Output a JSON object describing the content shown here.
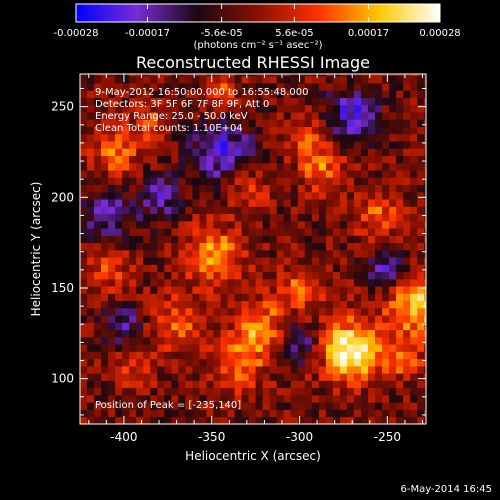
{
  "colorbar": {
    "ticks": [
      {
        "label": "-0.00028",
        "value": -0.00028
      },
      {
        "label": "-0.00017",
        "value": -0.00017
      },
      {
        "label": "-5.6e-05",
        "value": -5.6e-05
      },
      {
        "label": "5.6e-05",
        "value": 5.6e-05
      },
      {
        "label": "0.00017",
        "value": 0.00017
      },
      {
        "label": "0.00028",
        "value": 0.00028
      }
    ],
    "range": [
      -0.00028,
      0.00028
    ],
    "unit_label": "(photons cm⁻² s⁻¹ asec⁻²)",
    "stops": [
      "#0000ff",
      "#7a2bd8",
      "#1a0812",
      "#8a1000",
      "#ff3200",
      "#ffc800",
      "#ffffff"
    ]
  },
  "chart_data": {
    "type": "heatmap",
    "title": "Reconstructed RHESSI Image",
    "xlabel": "Heliocentric X (arcsec)",
    "ylabel": "Heliocentric Y (arcsec)",
    "xlim": [
      -425,
      -228
    ],
    "ylim": [
      75,
      268
    ],
    "x_ticks": [
      {
        "label": "-400",
        "value": -400
      },
      {
        "label": "-350",
        "value": -350
      },
      {
        "label": "-300",
        "value": -300
      },
      {
        "label": "-250",
        "value": -250
      }
    ],
    "y_ticks": [
      {
        "label": "100",
        "value": 100
      },
      {
        "label": "150",
        "value": 150
      },
      {
        "label": "200",
        "value": 200
      },
      {
        "label": "250",
        "value": 250
      }
    ],
    "annotations": [
      "9-May-2012 16:50:00.000 to 16:55:48.000",
      "Detectors: 3F 5F 6F 7F 8F 9F, Att 0",
      "Energy Range: 25.0 - 50.0 keV",
      "Clean    Total counts: 1.10E+04"
    ],
    "peak_label": "Position of Peak = [-235,140]",
    "peak_position": [
      -235,
      140
    ],
    "grid": "off",
    "hotspots": [
      {
        "x": -233,
        "y": 140,
        "sigma": 12,
        "amp": 1.0
      },
      {
        "x": -275,
        "y": 118,
        "sigma": 13,
        "amp": 0.85
      },
      {
        "x": -265,
        "y": 112,
        "sigma": 9,
        "amp": 0.7
      },
      {
        "x": -322,
        "y": 128,
        "sigma": 11,
        "amp": 0.8
      },
      {
        "x": -335,
        "y": 108,
        "sigma": 10,
        "amp": 0.65
      },
      {
        "x": -348,
        "y": 168,
        "sigma": 12,
        "amp": 0.75
      },
      {
        "x": -300,
        "y": 150,
        "sigma": 9,
        "amp": 0.55
      },
      {
        "x": -370,
        "y": 130,
        "sigma": 11,
        "amp": 0.6
      },
      {
        "x": -405,
        "y": 225,
        "sigma": 9,
        "amp": 0.7
      },
      {
        "x": -385,
        "y": 240,
        "sigma": 7,
        "amp": 0.55
      },
      {
        "x": -287,
        "y": 215,
        "sigma": 9,
        "amp": 0.6
      },
      {
        "x": -296,
        "y": 232,
        "sigma": 8,
        "amp": 0.55
      },
      {
        "x": -255,
        "y": 190,
        "sigma": 9,
        "amp": 0.6
      },
      {
        "x": -345,
        "y": 258,
        "sigma": 7,
        "amp": 0.5
      },
      {
        "x": -410,
        "y": 160,
        "sigma": 9,
        "amp": 0.5
      },
      {
        "x": -330,
        "y": 205,
        "sigma": 9,
        "amp": 0.45
      },
      {
        "x": -240,
        "y": 110,
        "sigma": 7,
        "amp": 0.55
      },
      {
        "x": -395,
        "y": 105,
        "sigma": 8,
        "amp": 0.4
      }
    ],
    "coldspots": [
      {
        "x": -300,
        "y": 120,
        "sigma": 9,
        "amp": 0.7
      },
      {
        "x": -345,
        "y": 225,
        "sigma": 12,
        "amp": 0.8
      },
      {
        "x": -270,
        "y": 245,
        "sigma": 10,
        "amp": 0.75
      },
      {
        "x": -250,
        "y": 160,
        "sigma": 8,
        "amp": 0.6
      },
      {
        "x": -410,
        "y": 190,
        "sigma": 10,
        "amp": 0.6
      },
      {
        "x": -380,
        "y": 200,
        "sigma": 9,
        "amp": 0.55
      },
      {
        "x": -400,
        "y": 130,
        "sigma": 8,
        "amp": 0.5
      }
    ]
  },
  "footer": {
    "date": "6-May-2014 16:45"
  }
}
